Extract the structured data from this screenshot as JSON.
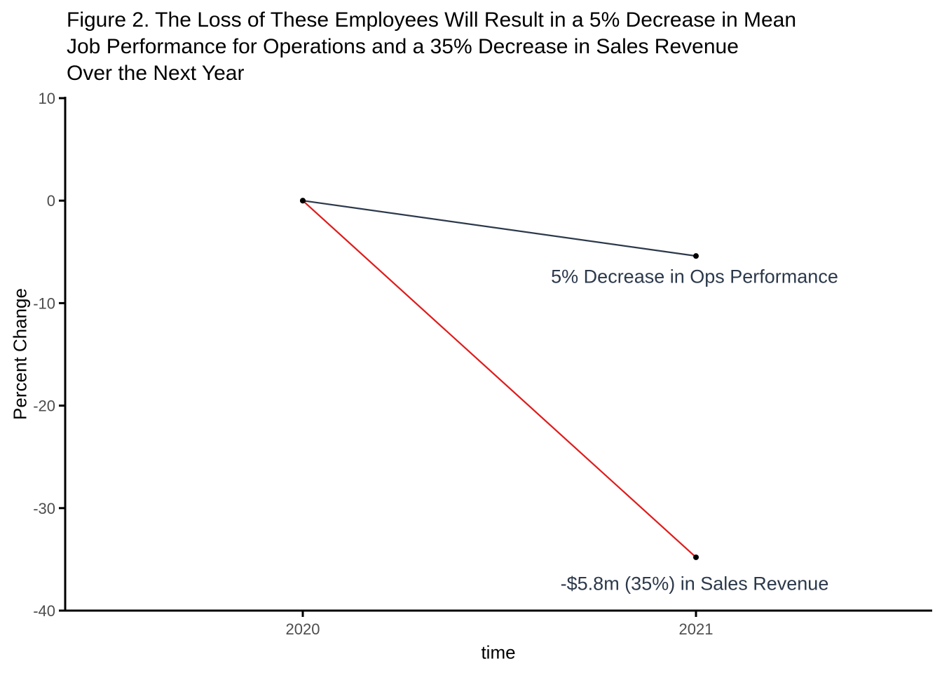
{
  "figure": {
    "title_lines": [
      "Figure 2. The Loss of These Employees Will Result in a 5% Decrease in Mean",
      "Job Performance for Operations and a 35% Decrease in Sales Revenue",
      "Over the Next Year"
    ]
  },
  "chart_data": {
    "type": "line",
    "title": "Figure 2. The Loss of These Employees Will Result in a 5% Decrease in Mean Job Performance for Operations and a 35% Decrease in Sales Revenue Over the Next Year",
    "xlabel": "time",
    "ylabel": "Percent Change",
    "x": [
      2020,
      2021
    ],
    "x_tick_labels": [
      "2020",
      "2021"
    ],
    "y_ticks": [
      10,
      0,
      -10,
      -20,
      -30,
      -40
    ],
    "y_tick_labels": [
      "10",
      "0",
      "-10",
      "-20",
      "-30",
      "-40"
    ],
    "ylim": [
      -40,
      10
    ],
    "grid": false,
    "legend": "none",
    "series": [
      {
        "name": "Ops Performance",
        "color": "#2C394B",
        "values": [
          0,
          -5.4
        ],
        "annotation": "5% Decrease in Ops Performance"
      },
      {
        "name": "Sales Revenue",
        "color": "#E01A1A",
        "values": [
          0,
          -34.8
        ],
        "annotation": "-$5.8m (35%) in Sales Revenue"
      }
    ],
    "colors": {
      "point": "#000000",
      "axis": "#000000",
      "tick_label": "#4D4D4D",
      "axis_title": "#000000",
      "annotation_text": "#2C394B",
      "background": "#FFFFFF"
    }
  }
}
